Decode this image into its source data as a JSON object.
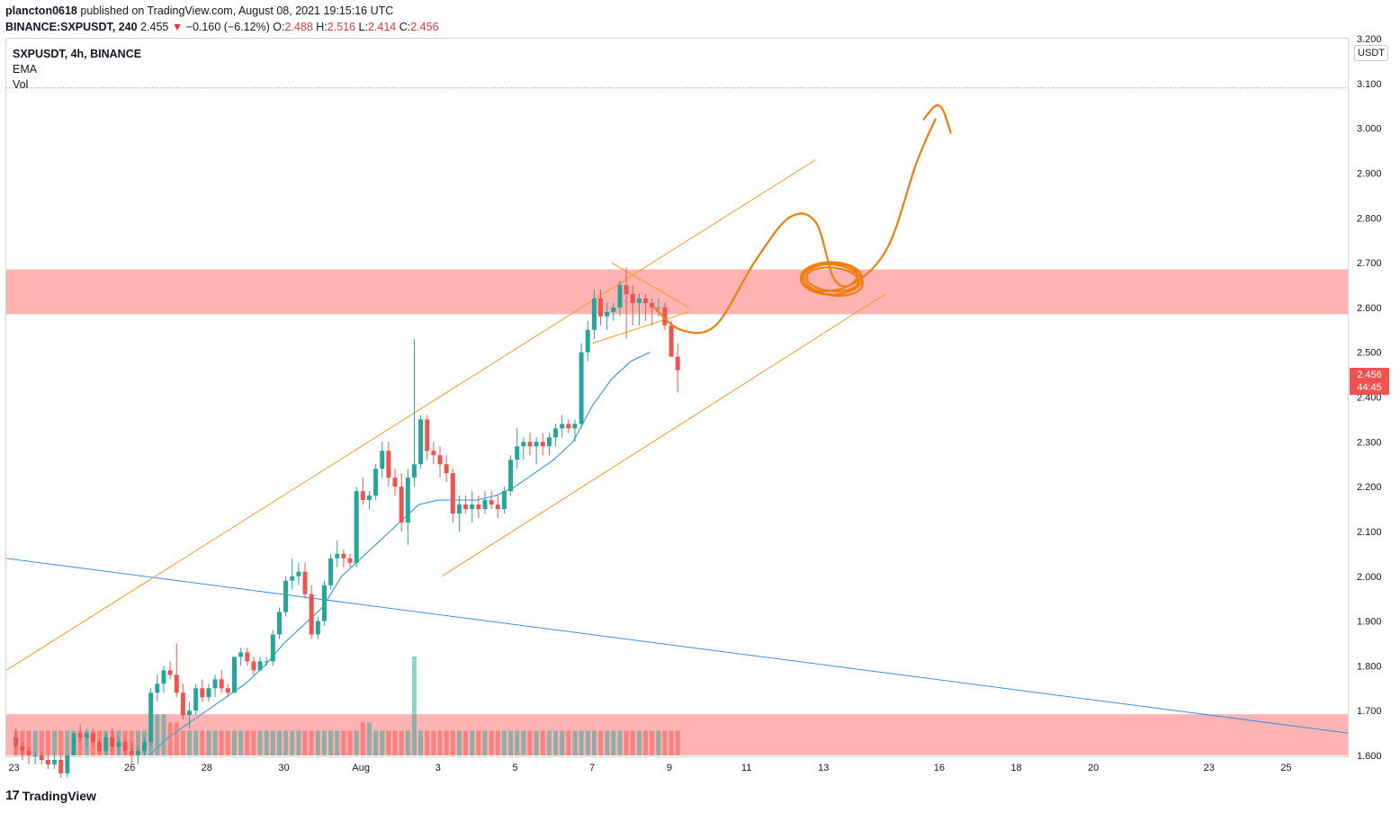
{
  "header": {
    "author": "plancton0618",
    "published_text": "published on TradingView.com, August 08, 2021 19:15:16 UTC"
  },
  "ticker": {
    "symbol_line": "BINANCE:SXPUSDT, 240",
    "last": "2.455",
    "arrow": "▼",
    "change": "−0.160 (−6.12%)",
    "o_label": "O:",
    "o": "2.488",
    "h_label": "H:",
    "h": "2.516",
    "l_label": "L:",
    "l": "2.414",
    "c_label": "C:",
    "c": "2.456"
  },
  "legend": {
    "title": "SXPUSDT, 4h, BINANCE",
    "indicator1": "EMA",
    "indicator2": "Vol"
  },
  "price_scale": {
    "currency": "USDT",
    "badge_price": "2.456",
    "badge_timer": "44:45"
  },
  "footer": {
    "brand": "TradingView",
    "logo_icon": "tradingview-logo-icon"
  },
  "colors": {
    "bull": "#26a69a",
    "bear": "#ef5350",
    "zone": "#ffb3b3",
    "channel": "#f59d1f",
    "drawing": "#f27c0c",
    "ema": "#3d9fe0",
    "trendline": "#3d8fe0"
  },
  "chart_data": {
    "type": "candlestick",
    "symbol": "SXPUSDT",
    "interval": "4h",
    "exchange": "BINANCE",
    "ylim": [
      1.6,
      3.2
    ],
    "y_ticks": [
      1.6,
      1.7,
      1.8,
      1.9,
      2.0,
      2.1,
      2.2,
      2.3,
      2.4,
      2.5,
      2.6,
      2.7,
      2.8,
      2.9,
      3.0,
      3.1,
      3.2
    ],
    "y_tick_labels": [
      "1.600",
      "1.700",
      "1.800",
      "1.900",
      "2.000",
      "2.100",
      "2.200",
      "2.300",
      "2.400",
      "2.500",
      "2.600",
      "2.700",
      "2.800",
      "2.900",
      "3.000",
      "3.100",
      "3.200"
    ],
    "x_ticks": [
      {
        "label": "23",
        "day": -9
      },
      {
        "label": "26",
        "day": -6
      },
      {
        "label": "28",
        "day": -4
      },
      {
        "label": "30",
        "day": -2
      },
      {
        "label": "Aug",
        "day": 0
      },
      {
        "label": "3",
        "day": 2
      },
      {
        "label": "5",
        "day": 4
      },
      {
        "label": "7",
        "day": 6
      },
      {
        "label": "9",
        "day": 8
      },
      {
        "label": "11",
        "day": 10
      },
      {
        "label": "13",
        "day": 12
      },
      {
        "label": "16",
        "day": 15
      },
      {
        "label": "18",
        "day": 17
      },
      {
        "label": "20",
        "day": 19
      },
      {
        "label": "23",
        "day": 22
      },
      {
        "label": "25",
        "day": 24
      }
    ],
    "x_range_days": [
      -9.2,
      25.6
    ],
    "first_candle_day": -8.95,
    "candle_interval_days": 0.16667,
    "candles": [
      [
        1.64,
        1.66,
        1.6,
        1.62
      ],
      [
        1.62,
        1.63,
        1.59,
        1.61
      ],
      [
        1.61,
        1.62,
        1.58,
        1.6
      ],
      [
        1.6,
        1.61,
        1.58,
        1.6
      ],
      [
        1.6,
        1.61,
        1.58,
        1.59
      ],
      [
        1.59,
        1.6,
        1.57,
        1.58
      ],
      [
        1.58,
        1.6,
        1.57,
        1.59
      ],
      [
        1.59,
        1.6,
        1.55,
        1.56
      ],
      [
        1.56,
        1.6,
        1.55,
        1.6
      ],
      [
        1.6,
        1.65,
        1.6,
        1.65
      ],
      [
        1.65,
        1.67,
        1.63,
        1.64
      ],
      [
        1.64,
        1.66,
        1.62,
        1.65
      ],
      [
        1.65,
        1.66,
        1.62,
        1.63
      ],
      [
        1.63,
        1.64,
        1.6,
        1.61
      ],
      [
        1.61,
        1.65,
        1.6,
        1.64
      ],
      [
        1.64,
        1.66,
        1.61,
        1.62
      ],
      [
        1.62,
        1.64,
        1.6,
        1.63
      ],
      [
        1.63,
        1.64,
        1.6,
        1.61
      ],
      [
        1.61,
        1.63,
        1.58,
        1.6
      ],
      [
        1.6,
        1.62,
        1.58,
        1.61
      ],
      [
        1.61,
        1.64,
        1.6,
        1.63
      ],
      [
        1.63,
        1.75,
        1.62,
        1.74
      ],
      [
        1.74,
        1.78,
        1.72,
        1.76
      ],
      [
        1.76,
        1.8,
        1.74,
        1.79
      ],
      [
        1.79,
        1.81,
        1.77,
        1.78
      ],
      [
        1.78,
        1.85,
        1.73,
        1.74
      ],
      [
        1.74,
        1.76,
        1.68,
        1.69
      ],
      [
        1.69,
        1.72,
        1.66,
        1.7
      ],
      [
        1.7,
        1.76,
        1.69,
        1.75
      ],
      [
        1.75,
        1.77,
        1.72,
        1.73
      ],
      [
        1.73,
        1.76,
        1.72,
        1.75
      ],
      [
        1.75,
        1.78,
        1.73,
        1.77
      ],
      [
        1.77,
        1.79,
        1.74,
        1.75
      ],
      [
        1.75,
        1.76,
        1.73,
        1.74
      ],
      [
        1.74,
        1.82,
        1.74,
        1.82
      ],
      [
        1.82,
        1.84,
        1.8,
        1.83
      ],
      [
        1.83,
        1.84,
        1.8,
        1.81
      ],
      [
        1.81,
        1.82,
        1.78,
        1.79
      ],
      [
        1.79,
        1.82,
        1.79,
        1.81
      ],
      [
        1.81,
        1.82,
        1.8,
        1.81
      ],
      [
        1.81,
        1.88,
        1.8,
        1.87
      ],
      [
        1.87,
        1.93,
        1.86,
        1.92
      ],
      [
        1.92,
        2.0,
        1.91,
        1.99
      ],
      [
        1.99,
        2.04,
        1.97,
        2.0
      ],
      [
        2.0,
        2.03,
        1.98,
        2.01
      ],
      [
        2.01,
        2.03,
        1.95,
        1.96
      ],
      [
        1.96,
        1.98,
        1.86,
        1.87
      ],
      [
        1.87,
        1.91,
        1.86,
        1.9
      ],
      [
        1.9,
        1.99,
        1.89,
        1.98
      ],
      [
        1.98,
        2.05,
        1.97,
        2.04
      ],
      [
        2.04,
        2.08,
        2.02,
        2.05
      ],
      [
        2.05,
        2.06,
        2.02,
        2.04
      ],
      [
        2.04,
        2.05,
        2.02,
        2.03
      ],
      [
        2.03,
        2.2,
        2.02,
        2.19
      ],
      [
        2.19,
        2.22,
        2.16,
        2.17
      ],
      [
        2.17,
        2.19,
        2.15,
        2.18
      ],
      [
        2.18,
        2.25,
        2.17,
        2.24
      ],
      [
        2.24,
        2.3,
        2.22,
        2.28
      ],
      [
        2.28,
        2.3,
        2.2,
        2.22
      ],
      [
        2.22,
        2.24,
        2.18,
        2.2
      ],
      [
        2.2,
        2.23,
        2.1,
        2.12
      ],
      [
        2.12,
        2.24,
        2.07,
        2.22
      ],
      [
        2.22,
        2.53,
        2.2,
        2.25
      ],
      [
        2.25,
        2.36,
        2.24,
        2.35
      ],
      [
        2.35,
        2.36,
        2.26,
        2.28
      ],
      [
        2.28,
        2.3,
        2.25,
        2.27
      ],
      [
        2.27,
        2.29,
        2.22,
        2.25
      ],
      [
        2.25,
        2.27,
        2.21,
        2.23
      ],
      [
        2.23,
        2.24,
        2.12,
        2.14
      ],
      [
        2.14,
        2.18,
        2.1,
        2.16
      ],
      [
        2.16,
        2.18,
        2.14,
        2.15
      ],
      [
        2.15,
        2.19,
        2.12,
        2.16
      ],
      [
        2.16,
        2.18,
        2.13,
        2.15
      ],
      [
        2.15,
        2.19,
        2.14,
        2.17
      ],
      [
        2.17,
        2.19,
        2.15,
        2.16
      ],
      [
        2.16,
        2.18,
        2.13,
        2.15
      ],
      [
        2.15,
        2.2,
        2.14,
        2.19
      ],
      [
        2.19,
        2.27,
        2.18,
        2.26
      ],
      [
        2.26,
        2.33,
        2.24,
        2.29
      ],
      [
        2.29,
        2.31,
        2.26,
        2.3
      ],
      [
        2.3,
        2.32,
        2.27,
        2.29
      ],
      [
        2.29,
        2.31,
        2.25,
        2.3
      ],
      [
        2.3,
        2.32,
        2.27,
        2.29
      ],
      [
        2.29,
        2.32,
        2.27,
        2.31
      ],
      [
        2.31,
        2.34,
        2.29,
        2.33
      ],
      [
        2.33,
        2.36,
        2.31,
        2.34
      ],
      [
        2.34,
        2.35,
        2.32,
        2.33
      ],
      [
        2.33,
        2.35,
        2.3,
        2.34
      ],
      [
        2.34,
        2.52,
        2.33,
        2.5
      ],
      [
        2.5,
        2.57,
        2.48,
        2.55
      ],
      [
        2.55,
        2.64,
        2.53,
        2.62
      ],
      [
        2.62,
        2.64,
        2.56,
        2.58
      ],
      [
        2.58,
        2.61,
        2.55,
        2.59
      ],
      [
        2.59,
        2.61,
        2.57,
        2.6
      ],
      [
        2.6,
        2.66,
        2.58,
        2.65
      ],
      [
        2.65,
        2.69,
        2.53,
        2.63
      ],
      [
        2.63,
        2.65,
        2.56,
        2.61
      ],
      [
        2.61,
        2.63,
        2.56,
        2.62
      ],
      [
        2.62,
        2.63,
        2.57,
        2.61
      ],
      [
        2.61,
        2.62,
        2.56,
        2.6
      ],
      [
        2.6,
        2.62,
        2.58,
        2.6
      ],
      [
        2.6,
        2.61,
        2.55,
        2.56
      ],
      [
        2.56,
        2.57,
        2.49,
        2.49
      ],
      [
        2.49,
        2.52,
        2.41,
        2.46
      ]
    ],
    "volume_max_ref": 12,
    "volumes": [
      3,
      3,
      3,
      3,
      3,
      3,
      3,
      3,
      3,
      3,
      3,
      3,
      3,
      3,
      3,
      3,
      3,
      3,
      3,
      3,
      3,
      3,
      5,
      5,
      4,
      4,
      3,
      3,
      3,
      3,
      3,
      3,
      3,
      3,
      3,
      3,
      3,
      3,
      3,
      3,
      3,
      3,
      3,
      3,
      3,
      3,
      3,
      3,
      3,
      3,
      3,
      3,
      3,
      3,
      4,
      4,
      3,
      3,
      3,
      3,
      3,
      3,
      12,
      3,
      3,
      3,
      3,
      3,
      3,
      3,
      3,
      3,
      3,
      3,
      3,
      3,
      3,
      3,
      3,
      3,
      3,
      3,
      3,
      3,
      3,
      3,
      3,
      3,
      3,
      3,
      3,
      3,
      3,
      3,
      3,
      3,
      3,
      3,
      3,
      3,
      3,
      3,
      3,
      3,
      3,
      3
    ],
    "ema": [
      [
        -5.5,
        1.6
      ],
      [
        -5.0,
        1.64
      ],
      [
        -4.5,
        1.67
      ],
      [
        -4.0,
        1.7
      ],
      [
        -3.5,
        1.73
      ],
      [
        -3.0,
        1.76
      ],
      [
        -2.5,
        1.8
      ],
      [
        -2.0,
        1.85
      ],
      [
        -1.5,
        1.89
      ],
      [
        -1.0,
        1.93
      ],
      [
        -0.5,
        2.0
      ],
      [
        0.0,
        2.04
      ],
      [
        0.5,
        2.08
      ],
      [
        1.0,
        2.12
      ],
      [
        1.5,
        2.16
      ],
      [
        2.0,
        2.17
      ],
      [
        2.5,
        2.17
      ],
      [
        3.0,
        2.17
      ],
      [
        3.5,
        2.18
      ],
      [
        4.0,
        2.2
      ],
      [
        4.5,
        2.23
      ],
      [
        5.0,
        2.26
      ],
      [
        5.5,
        2.3
      ],
      [
        6.0,
        2.38
      ],
      [
        6.5,
        2.44
      ],
      [
        7.0,
        2.48
      ],
      [
        7.5,
        2.5
      ]
    ],
    "channel_upper": [
      [
        -9.2,
        1.79
      ],
      [
        11.8,
        2.93
      ]
    ],
    "channel_lower": [
      [
        2.1,
        2.0
      ],
      [
        13.6,
        2.63
      ]
    ],
    "blue_trendline": [
      [
        -9.2,
        2.04
      ],
      [
        25.6,
        1.65
      ]
    ],
    "resistance_zone": [
      2.585,
      2.685
    ],
    "support_zone": [
      1.6,
      1.692
    ],
    "dotted_level": 3.09,
    "triangle": [
      [
        [
          6.5,
          2.7
        ],
        [
          8.5,
          2.6
        ]
      ],
      [
        [
          6.0,
          2.52
        ],
        [
          8.5,
          2.59
        ]
      ]
    ],
    "projection_path": [
      [
        7.6,
        2.6
      ],
      [
        8.3,
        2.55
      ],
      [
        9.2,
        2.56
      ],
      [
        10.2,
        2.7
      ],
      [
        11.1,
        2.8
      ],
      [
        11.8,
        2.79
      ],
      [
        12.3,
        2.66
      ],
      [
        12.9,
        2.66
      ],
      [
        13.7,
        2.74
      ],
      [
        14.4,
        2.92
      ],
      [
        14.9,
        3.02
      ]
    ],
    "projection_hook": [
      [
        14.6,
        3.02
      ],
      [
        14.9,
        3.05
      ],
      [
        15.1,
        3.04
      ],
      [
        15.3,
        2.99
      ]
    ],
    "circle_target": {
      "day": 12.2,
      "price": 2.665
    }
  }
}
